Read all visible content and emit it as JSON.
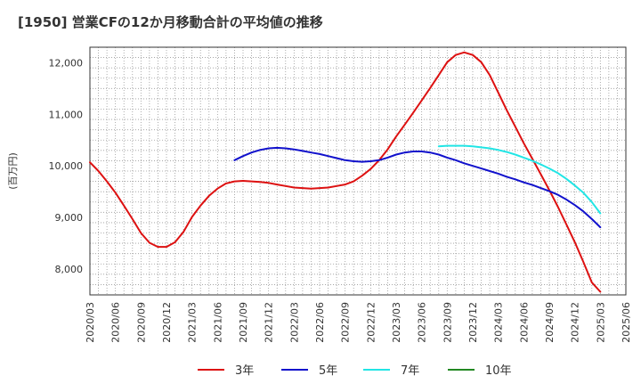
{
  "title": "[1950]  営業CFの12か月移動合計の平均値の推移",
  "chart_data": {
    "type": "line",
    "title": "[1950]  営業CFの12か月移動合計の平均値の推移",
    "ylabel": "(百万円)",
    "xlabel": "",
    "ylim": [
      7500,
      12300
    ],
    "y_ticks": [
      8000,
      9000,
      10000,
      11000,
      12000
    ],
    "y_tick_labels": [
      "8,000",
      "9,000",
      "10,000",
      "11,000",
      "12,000"
    ],
    "x_tick_labels": [
      "2020/03",
      "2020/06",
      "2020/09",
      "2020/12",
      "2021/03",
      "2021/06",
      "2021/09",
      "2021/12",
      "2022/03",
      "2022/06",
      "2022/09",
      "2022/12",
      "2023/03",
      "2023/06",
      "2023/09",
      "2023/12",
      "2024/03",
      "2024/06",
      "2024/09",
      "2024/12",
      "2025/03",
      "2025/06"
    ],
    "grid": true,
    "legend_position": "bottom",
    "series": [
      {
        "name": "3年",
        "color": "#dd1111",
        "points": [
          [
            "2020/03",
            10070
          ],
          [
            "2020/04",
            9900
          ],
          [
            "2020/05",
            9700
          ],
          [
            "2020/06",
            9480
          ],
          [
            "2020/07",
            9230
          ],
          [
            "2020/08",
            8970
          ],
          [
            "2020/09",
            8700
          ],
          [
            "2020/10",
            8510
          ],
          [
            "2020/11",
            8430
          ],
          [
            "2020/12",
            8430
          ],
          [
            "2021/01",
            8520
          ],
          [
            "2021/02",
            8720
          ],
          [
            "2021/03",
            9010
          ],
          [
            "2021/04",
            9230
          ],
          [
            "2021/05",
            9420
          ],
          [
            "2021/06",
            9560
          ],
          [
            "2021/07",
            9660
          ],
          [
            "2021/08",
            9700
          ],
          [
            "2021/09",
            9710
          ],
          [
            "2021/10",
            9700
          ],
          [
            "2021/11",
            9690
          ],
          [
            "2021/12",
            9670
          ],
          [
            "2022/01",
            9640
          ],
          [
            "2022/02",
            9610
          ],
          [
            "2022/03",
            9580
          ],
          [
            "2022/04",
            9570
          ],
          [
            "2022/05",
            9560
          ],
          [
            "2022/06",
            9570
          ],
          [
            "2022/07",
            9580
          ],
          [
            "2022/08",
            9610
          ],
          [
            "2022/09",
            9640
          ],
          [
            "2022/10",
            9700
          ],
          [
            "2022/11",
            9810
          ],
          [
            "2022/12",
            9940
          ],
          [
            "2023/01",
            10110
          ],
          [
            "2023/02",
            10320
          ],
          [
            "2023/03",
            10570
          ],
          [
            "2023/04",
            10800
          ],
          [
            "2023/05",
            11030
          ],
          [
            "2023/06",
            11270
          ],
          [
            "2023/07",
            11510
          ],
          [
            "2023/08",
            11760
          ],
          [
            "2023/09",
            12010
          ],
          [
            "2023/10",
            12150
          ],
          [
            "2023/11",
            12200
          ],
          [
            "2023/12",
            12150
          ],
          [
            "2024/01",
            12010
          ],
          [
            "2024/02",
            11760
          ],
          [
            "2024/03",
            11420
          ],
          [
            "2024/04",
            11080
          ],
          [
            "2024/05",
            10760
          ],
          [
            "2024/06",
            10440
          ],
          [
            "2024/07",
            10140
          ],
          [
            "2024/08",
            9840
          ],
          [
            "2024/09",
            9530
          ],
          [
            "2024/10",
            9210
          ],
          [
            "2024/11",
            8870
          ],
          [
            "2024/12",
            8520
          ],
          [
            "2025/01",
            8140
          ],
          [
            "2025/02",
            7740
          ],
          [
            "2025/03",
            7560
          ]
        ]
      },
      {
        "name": "5年",
        "color": "#1111cc",
        "points": [
          [
            "2021/08",
            10110
          ],
          [
            "2021/09",
            10190
          ],
          [
            "2021/10",
            10260
          ],
          [
            "2021/11",
            10310
          ],
          [
            "2021/12",
            10340
          ],
          [
            "2022/01",
            10350
          ],
          [
            "2022/02",
            10340
          ],
          [
            "2022/03",
            10320
          ],
          [
            "2022/04",
            10290
          ],
          [
            "2022/05",
            10260
          ],
          [
            "2022/06",
            10230
          ],
          [
            "2022/07",
            10190
          ],
          [
            "2022/08",
            10150
          ],
          [
            "2022/09",
            10110
          ],
          [
            "2022/10",
            10090
          ],
          [
            "2022/11",
            10080
          ],
          [
            "2022/12",
            10090
          ],
          [
            "2023/01",
            10110
          ],
          [
            "2023/02",
            10160
          ],
          [
            "2023/03",
            10220
          ],
          [
            "2023/04",
            10260
          ],
          [
            "2023/05",
            10280
          ],
          [
            "2023/06",
            10280
          ],
          [
            "2023/07",
            10260
          ],
          [
            "2023/08",
            10220
          ],
          [
            "2023/09",
            10160
          ],
          [
            "2023/10",
            10110
          ],
          [
            "2023/11",
            10050
          ],
          [
            "2023/12",
            10000
          ],
          [
            "2024/01",
            9950
          ],
          [
            "2024/02",
            9900
          ],
          [
            "2024/03",
            9850
          ],
          [
            "2024/04",
            9790
          ],
          [
            "2024/05",
            9740
          ],
          [
            "2024/06",
            9680
          ],
          [
            "2024/07",
            9630
          ],
          [
            "2024/08",
            9570
          ],
          [
            "2024/09",
            9510
          ],
          [
            "2024/10",
            9440
          ],
          [
            "2024/11",
            9350
          ],
          [
            "2024/12",
            9240
          ],
          [
            "2025/01",
            9120
          ],
          [
            "2025/02",
            8970
          ],
          [
            "2025/03",
            8810
          ]
        ]
      },
      {
        "name": "7年",
        "color": "#22e5e5",
        "points": [
          [
            "2023/08",
            10380
          ],
          [
            "2023/09",
            10390
          ],
          [
            "2023/10",
            10390
          ],
          [
            "2023/11",
            10390
          ],
          [
            "2023/12",
            10380
          ],
          [
            "2024/01",
            10360
          ],
          [
            "2024/02",
            10340
          ],
          [
            "2024/03",
            10310
          ],
          [
            "2024/04",
            10270
          ],
          [
            "2024/05",
            10220
          ],
          [
            "2024/06",
            10160
          ],
          [
            "2024/07",
            10100
          ],
          [
            "2024/08",
            10030
          ],
          [
            "2024/09",
            9950
          ],
          [
            "2024/10",
            9860
          ],
          [
            "2024/11",
            9750
          ],
          [
            "2024/12",
            9620
          ],
          [
            "2025/01",
            9480
          ],
          [
            "2025/02",
            9300
          ],
          [
            "2025/03",
            9080
          ]
        ]
      },
      {
        "name": "10年",
        "color": "#228822",
        "points": []
      }
    ]
  }
}
